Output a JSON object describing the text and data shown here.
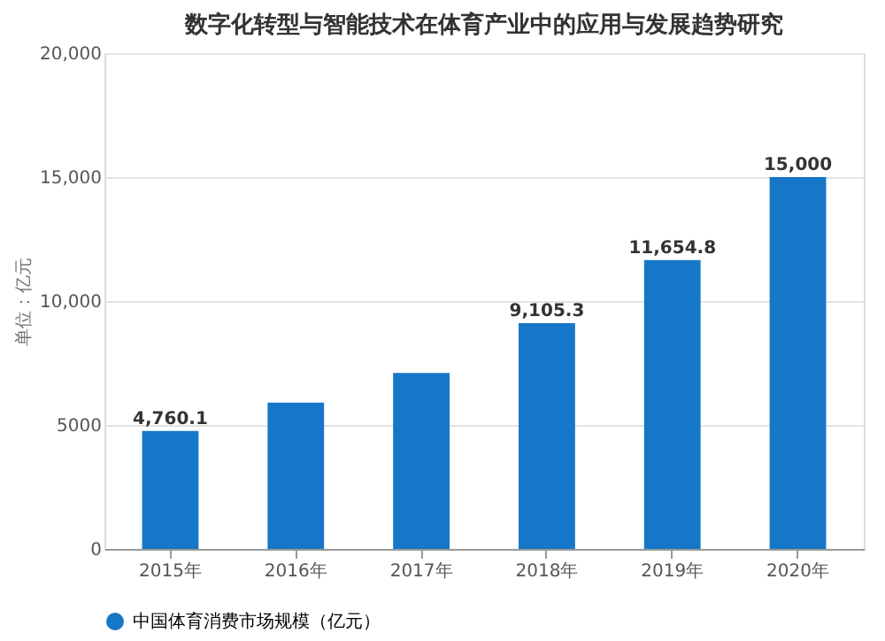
{
  "chart_data": {
    "type": "bar",
    "title": "数字化转型与智能技术在体育产业中的应用与发展趋势研究",
    "ylabel": "单位：亿元",
    "categories": [
      "2015年",
      "2016年",
      "2017年",
      "2018年",
      "2019年",
      "2020年"
    ],
    "series": [
      {
        "name": "中国体育消费市场规模（亿元）",
        "color": "#1677c8",
        "values": [
          4760.1,
          5900,
          7100,
          9105.3,
          11654.8,
          15000
        ],
        "value_labels": [
          "4,760.1",
          null,
          null,
          "9,105.3",
          "11,654.8",
          "15,000"
        ]
      }
    ],
    "ylim": [
      0,
      20000
    ],
    "yticks": [
      0,
      {
        "value": 5000,
        "label": "5000"
      },
      {
        "value": 10000,
        "label": "10,000"
      },
      {
        "value": 15000,
        "label": "15,000"
      },
      {
        "value": 20000,
        "label": "20,000"
      }
    ],
    "grid": "y",
    "legend": "bottom"
  }
}
